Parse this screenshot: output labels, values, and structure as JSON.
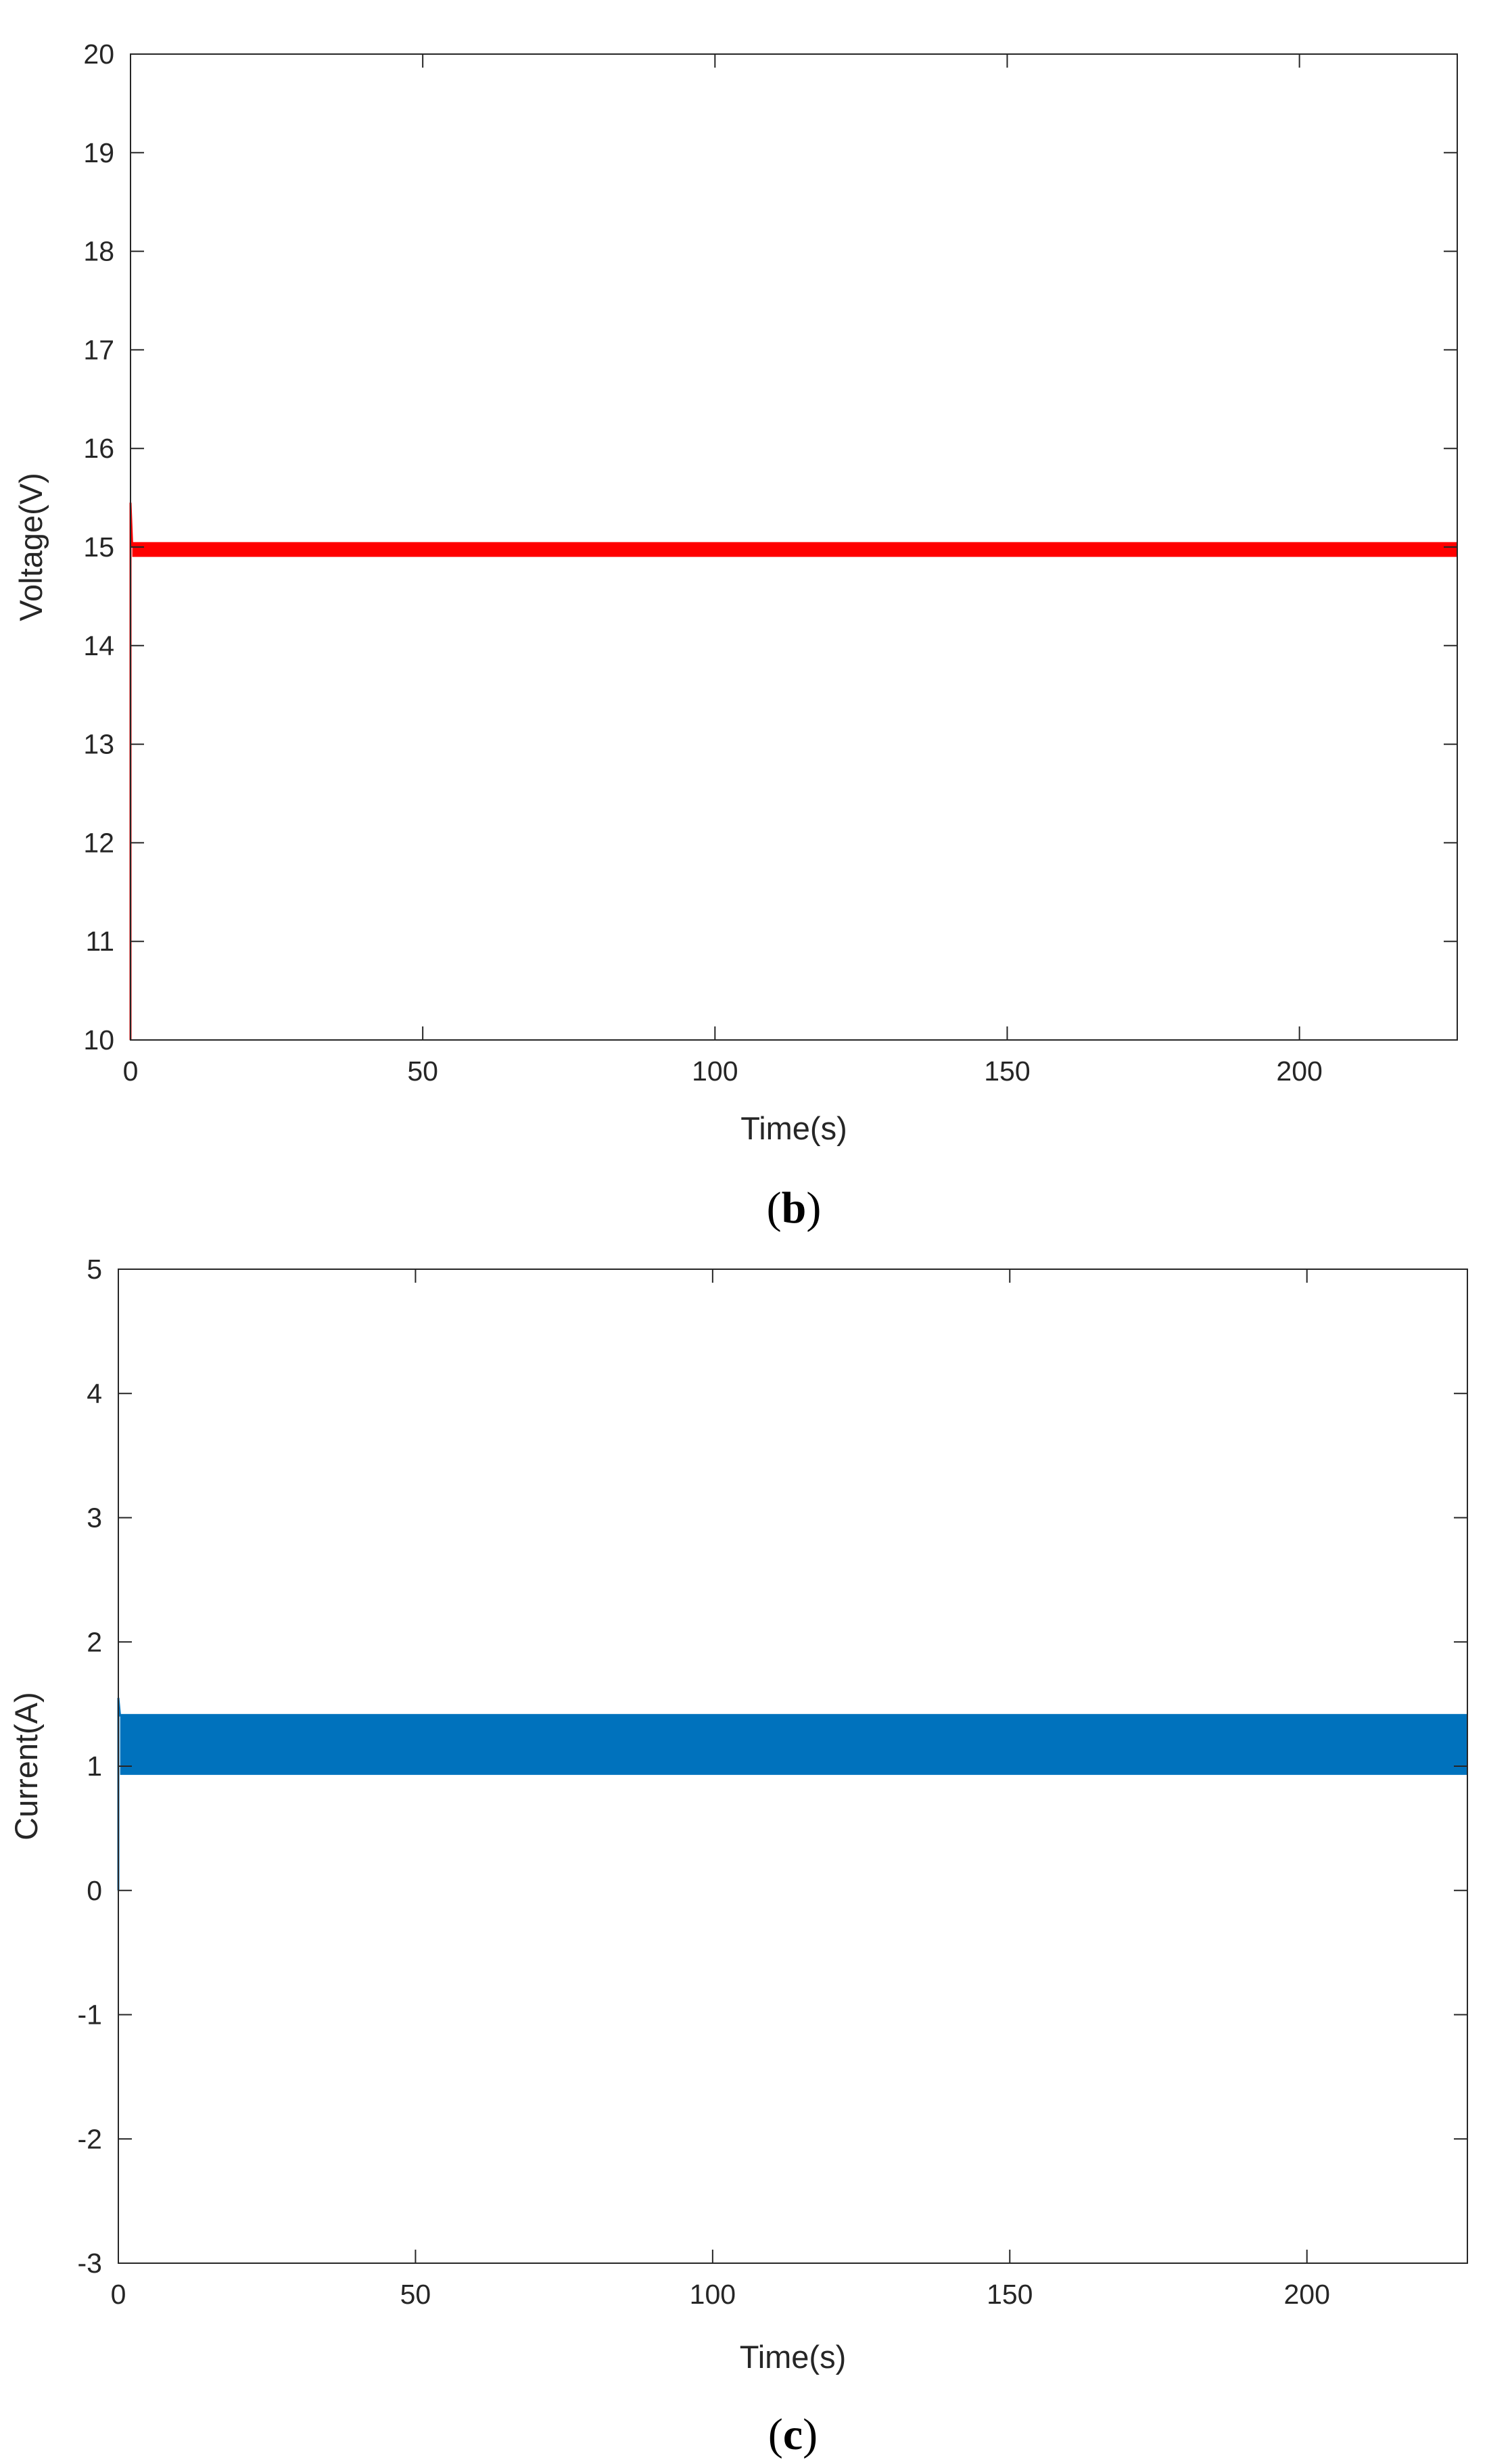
{
  "chart_data": [
    {
      "type": "line",
      "caption_letter": "b",
      "xlabel": "Time(s)",
      "ylabel": "Voltage(V)",
      "xlim": [
        0,
        227
      ],
      "ylim": [
        10,
        20
      ],
      "xticks": [
        0,
        50,
        100,
        150,
        200
      ],
      "yticks": [
        10,
        11,
        12,
        13,
        14,
        15,
        16,
        17,
        18,
        19,
        20
      ],
      "grid": false,
      "series": [
        {
          "color": "#ff0000",
          "startup": {
            "x": [
              0,
              0,
              0.3
            ],
            "y": [
              10,
              15.45,
              15.0
            ]
          },
          "band": {
            "x_start": 0.3,
            "x_end": 227,
            "low": 14.9,
            "high": 15.05
          }
        }
      ]
    },
    {
      "type": "line",
      "caption_letter": "c",
      "xlabel": "Time(s)",
      "ylabel": "Current(A)",
      "xlim": [
        0,
        227
      ],
      "ylim": [
        -3,
        5
      ],
      "xticks": [
        0,
        50,
        100,
        150,
        200
      ],
      "yticks": [
        -3,
        -2,
        -1,
        0,
        1,
        2,
        3,
        4,
        5
      ],
      "grid": false,
      "series": [
        {
          "color": "#0072bd",
          "startup": {
            "x": [
              0,
              0,
              0.3
            ],
            "y": [
              0,
              1.55,
              1.4
            ]
          },
          "band": {
            "x_start": 0.3,
            "x_end": 227,
            "low": 0.93,
            "high": 1.42
          }
        }
      ]
    }
  ]
}
